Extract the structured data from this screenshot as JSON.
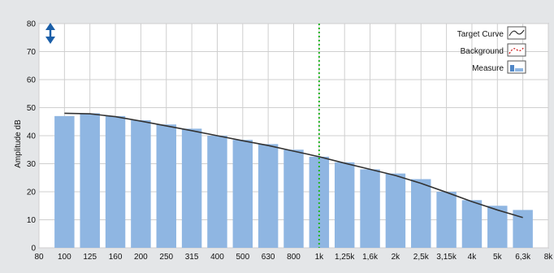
{
  "chart_data": {
    "type": "bar",
    "ylabel": "Amplitude dB",
    "xlabel": "",
    "ylim": [
      0,
      80
    ],
    "yticks": [
      0,
      10,
      20,
      30,
      40,
      50,
      60,
      70,
      80
    ],
    "x_ticks": [
      "80",
      "100",
      "125",
      "160",
      "200",
      "250",
      "315",
      "400",
      "500",
      "630",
      "800",
      "1k",
      "1,25k",
      "1,6k",
      "2k",
      "2,5k",
      "3,15k",
      "4k",
      "5k",
      "6,3k",
      "8k"
    ],
    "categories": [
      "100",
      "125",
      "160",
      "200",
      "250",
      "315",
      "400",
      "500",
      "630",
      "800",
      "1k",
      "1,25k",
      "1,6k",
      "2k",
      "2,5k",
      "3,15k",
      "4k",
      "5k",
      "6,3k"
    ],
    "grid": true,
    "legend_position": "top-right",
    "series": [
      {
        "name": "Measure",
        "type": "bar",
        "color": "#8fb6e2",
        "values": [
          47,
          48,
          47,
          45.5,
          44,
          42.5,
          40,
          38.5,
          37,
          35,
          32.5,
          30.5,
          28,
          26.5,
          24.5,
          20,
          17,
          15,
          13.5
        ]
      },
      {
        "name": "Target Curve",
        "type": "line",
        "color": "#333333",
        "values": [
          48,
          47.8,
          46.8,
          45.2,
          43.5,
          41.8,
          40,
          38.2,
          36.5,
          34.5,
          32.5,
          30.2,
          28,
          25.8,
          23,
          19.8,
          16.5,
          13.5,
          10.8
        ]
      }
    ],
    "legend": [
      {
        "label": "Target Curve",
        "icon": "target-curve-icon"
      },
      {
        "label": "Background",
        "icon": "background-icon"
      },
      {
        "label": "Measure",
        "icon": "measure-icon"
      }
    ],
    "marker_category": "1k",
    "marker_color": "#22b422",
    "scroll_control": "vertical-arrows-icon"
  }
}
